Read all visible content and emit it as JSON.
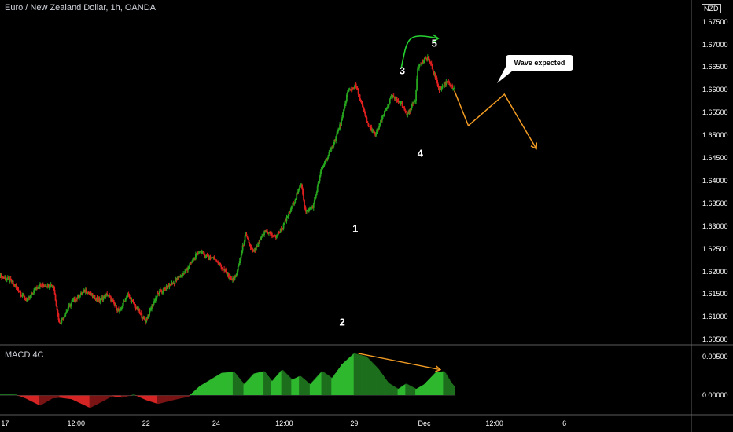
{
  "header": {
    "symbol": "Euro / New Zealand Dollar, 1h, OANDA",
    "currency_badge": "NZD"
  },
  "annotations": {
    "callout_text": "Wave expected",
    "wave_labels": [
      {
        "label": "1",
        "x": 17.75,
        "y": 1.6295
      },
      {
        "label": "2",
        "x": 17.1,
        "y": 1.6088
      },
      {
        "label": "3",
        "x": 20.1,
        "y": 1.6642
      },
      {
        "label": "4",
        "x": 21.0,
        "y": 1.6461
      },
      {
        "label": "5",
        "x": 21.7,
        "y": 1.6702
      }
    ]
  },
  "colors": {
    "up": "#26a41d",
    "down": "#e01f1f",
    "arrow_green": "#26d431",
    "arrow_orange": "#f39c24",
    "macd_pos": "#1f8f1f",
    "macd_neg": "#b52020",
    "axis_text": "#ffffff",
    "grid": "#2a2a2a"
  },
  "chart_data": [
    {
      "type": "candlestick",
      "title": "Euro / New Zealand Dollar, 1h, OANDA",
      "xlabel": "",
      "ylabel": "",
      "x_ticks": [
        "17",
        "12:00",
        "22",
        "24",
        "12:00",
        "29",
        "Dec",
        "12:00",
        "6"
      ],
      "x_tick_positions": [
        0.25,
        3.8,
        7.3,
        10.8,
        14.2,
        17.7,
        21.2,
        24.7,
        28.2
      ],
      "y_ticks": [
        "1.60500",
        "1.61000",
        "1.61500",
        "1.62000",
        "1.62500",
        "1.63000",
        "1.63500",
        "1.64000",
        "1.64500",
        "1.65000",
        "1.65500",
        "1.66000",
        "1.66500",
        "1.67000",
        "1.67500"
      ],
      "ylim": [
        1.604,
        1.6777
      ],
      "xlim": [
        0,
        34.5
      ],
      "price_anchors": [
        [
          0.0,
          1.6192
        ],
        [
          0.6,
          1.6178
        ],
        [
          1.4,
          1.6135
        ],
        [
          1.9,
          1.6168
        ],
        [
          2.7,
          1.617
        ],
        [
          3.0,
          1.6085
        ],
        [
          3.6,
          1.613
        ],
        [
          4.3,
          1.6158
        ],
        [
          5.0,
          1.6135
        ],
        [
          5.4,
          1.615
        ],
        [
          6.0,
          1.611
        ],
        [
          6.4,
          1.615
        ],
        [
          7.3,
          1.609
        ],
        [
          7.9,
          1.615
        ],
        [
          8.7,
          1.6175
        ],
        [
          9.3,
          1.62
        ],
        [
          10.0,
          1.6245
        ],
        [
          10.3,
          1.6235
        ],
        [
          10.8,
          1.6228
        ],
        [
          11.4,
          1.6192
        ],
        [
          11.7,
          1.618
        ],
        [
          11.9,
          1.62
        ],
        [
          12.3,
          1.628
        ],
        [
          12.7,
          1.624
        ],
        [
          13.0,
          1.6265
        ],
        [
          13.3,
          1.629
        ],
        [
          13.8,
          1.6275
        ],
        [
          14.2,
          1.63
        ],
        [
          14.6,
          1.634
        ],
        [
          15.1,
          1.6395
        ],
        [
          15.3,
          1.633
        ],
        [
          15.7,
          1.6345
        ],
        [
          16.1,
          1.6425
        ],
        [
          16.6,
          1.647
        ],
        [
          17.1,
          1.653
        ],
        [
          17.4,
          1.6595
        ],
        [
          17.8,
          1.661
        ],
        [
          18.1,
          1.657
        ],
        [
          18.4,
          1.6525
        ],
        [
          18.8,
          1.65
        ],
        [
          19.2,
          1.6545
        ],
        [
          19.6,
          1.6585
        ],
        [
          20.0,
          1.6575
        ],
        [
          20.4,
          1.6545
        ],
        [
          20.8,
          1.658
        ],
        [
          20.9,
          1.665
        ],
        [
          21.4,
          1.6672
        ],
        [
          21.7,
          1.664
        ],
        [
          22.0,
          1.66
        ],
        [
          22.4,
          1.662
        ],
        [
          22.7,
          1.66
        ]
      ],
      "projection": [
        [
          22.7,
          1.6598
        ],
        [
          23.4,
          1.6521
        ],
        [
          25.2,
          1.659
        ],
        [
          26.8,
          1.647
        ]
      ]
    },
    {
      "type": "histogram",
      "title": "MACD 4C",
      "xlabel": "",
      "ylabel": "",
      "y_ticks": [
        "0.00500",
        "0.00000"
      ],
      "ylim": [
        -0.0024,
        0.0062
      ],
      "histogram_anchors": [
        [
          0.0,
          0.0002
        ],
        [
          0.8,
          0.0001
        ],
        [
          1.3,
          -0.0004
        ],
        [
          2.0,
          -0.0013
        ],
        [
          2.6,
          -0.0004
        ],
        [
          3.0,
          -0.0003
        ],
        [
          3.6,
          -0.0005
        ],
        [
          4.5,
          -0.0016
        ],
        [
          5.1,
          -0.0008
        ],
        [
          5.6,
          -0.0001
        ],
        [
          6.1,
          -0.0003
        ],
        [
          6.7,
          0.0001
        ],
        [
          7.3,
          -0.0006
        ],
        [
          7.9,
          -0.0011
        ],
        [
          8.5,
          -0.0007
        ],
        [
          9.0,
          -0.0004
        ],
        [
          9.4,
          -0.0002
        ],
        [
          10.0,
          0.0012
        ],
        [
          11.1,
          0.0029
        ],
        [
          11.7,
          0.003
        ],
        [
          12.2,
          0.0014
        ],
        [
          12.7,
          0.0028
        ],
        [
          13.2,
          0.0031
        ],
        [
          13.6,
          0.0018
        ],
        [
          14.1,
          0.0033
        ],
        [
          14.6,
          0.002
        ],
        [
          15.0,
          0.0025
        ],
        [
          15.5,
          0.0014
        ],
        [
          16.1,
          0.0031
        ],
        [
          16.6,
          0.0022
        ],
        [
          17.1,
          0.004
        ],
        [
          17.7,
          0.0054
        ],
        [
          18.3,
          0.005
        ],
        [
          18.9,
          0.0034
        ],
        [
          19.4,
          0.0016
        ],
        [
          19.9,
          0.0008
        ],
        [
          20.3,
          0.0015
        ],
        [
          20.8,
          0.0008
        ],
        [
          21.2,
          0.0014
        ],
        [
          21.8,
          0.003
        ],
        [
          22.2,
          0.0031
        ],
        [
          22.5,
          0.0018
        ],
        [
          22.7,
          0.0011
        ]
      ],
      "divergence_line": [
        [
          17.9,
          0.0054
        ],
        [
          22.0,
          0.0033
        ]
      ]
    }
  ]
}
